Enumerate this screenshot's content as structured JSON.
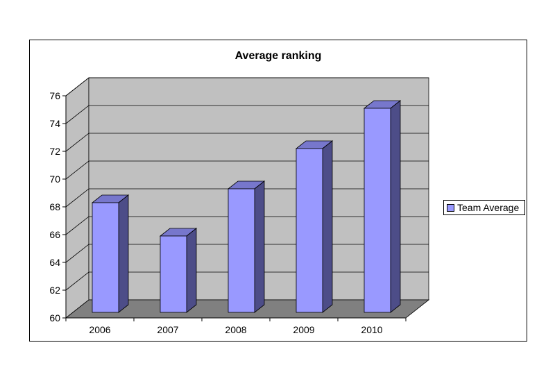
{
  "chart_data": {
    "type": "bar",
    "title": "Average ranking",
    "categories": [
      "2006",
      "2007",
      "2008",
      "2009",
      "2010"
    ],
    "series": [
      {
        "name": "Team Average",
        "values": [
          68.3,
          65.9,
          69.3,
          72.2,
          75.1
        ]
      }
    ],
    "ylim": [
      60,
      76
    ],
    "yticks": [
      60,
      62,
      64,
      66,
      68,
      70,
      72,
      74,
      76
    ],
    "grid": true,
    "legend_position": "right",
    "three_d": true
  },
  "colors": {
    "bar_front": "#9999ff",
    "bar_side": "#4d4d88",
    "bar_top": "#7777cc",
    "wall": "#c0c0c0",
    "floor": "#808080"
  }
}
